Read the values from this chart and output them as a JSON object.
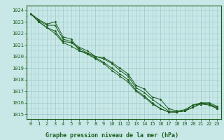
{
  "title": "Graphe pression niveau de la mer (hPa)",
  "background_color": "#c8e8e8",
  "plot_bg_color": "#c8e8e8",
  "grid_color": "#9ec8c8",
  "line_color": "#1a5c1a",
  "ylim": [
    1014.6,
    1024.4
  ],
  "xlim": [
    -0.5,
    23.5
  ],
  "yticks": [
    1015,
    1016,
    1017,
    1018,
    1019,
    1020,
    1021,
    1022,
    1023,
    1024
  ],
  "xticks": [
    0,
    1,
    2,
    3,
    4,
    5,
    6,
    7,
    8,
    9,
    10,
    11,
    12,
    13,
    14,
    15,
    16,
    17,
    18,
    19,
    20,
    21,
    22,
    23
  ],
  "curves": [
    [
      1023.7,
      1023.2,
      1022.8,
      1023.0,
      1021.7,
      1021.5,
      1020.5,
      1020.3,
      1020.0,
      1019.9,
      1019.5,
      1019.0,
      1018.5,
      1017.5,
      1017.2,
      1016.5,
      1016.3,
      1015.5,
      1015.3,
      1015.4,
      1015.8,
      1016.0,
      1016.0,
      1015.7
    ],
    [
      1023.7,
      1023.1,
      1022.7,
      1022.7,
      1021.5,
      1021.3,
      1020.8,
      1020.5,
      1020.0,
      1019.8,
      1019.4,
      1018.8,
      1018.3,
      1017.3,
      1016.9,
      1016.3,
      1015.8,
      1015.3,
      1015.2,
      1015.3,
      1015.8,
      1015.9,
      1015.9,
      1015.6
    ],
    [
      1023.7,
      1023.0,
      1022.5,
      1022.2,
      1021.3,
      1021.2,
      1020.7,
      1020.3,
      1019.9,
      1019.5,
      1019.0,
      1018.5,
      1018.0,
      1017.1,
      1016.6,
      1016.0,
      1015.5,
      1015.2,
      1015.2,
      1015.3,
      1015.6,
      1016.0,
      1015.9,
      1015.5
    ],
    [
      1023.7,
      1023.0,
      1022.5,
      1022.0,
      1021.2,
      1020.9,
      1020.5,
      1020.2,
      1019.8,
      1019.4,
      1018.8,
      1018.3,
      1017.8,
      1017.0,
      1016.5,
      1015.9,
      1015.5,
      1015.2,
      1015.2,
      1015.3,
      1015.6,
      1015.9,
      1015.8,
      1015.5
    ]
  ]
}
